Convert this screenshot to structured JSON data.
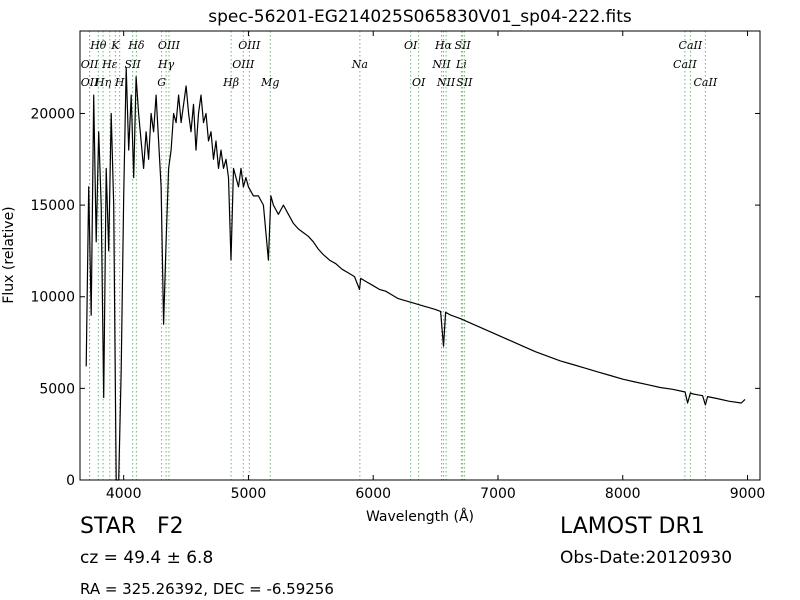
{
  "chart_data": {
    "type": "line",
    "title": "spec-56201-EG214025S065830V01_sp04-222.fits",
    "xlabel": "Wavelength (Å)",
    "ylabel": "Flux (relative)",
    "xlim": [
      3650,
      9100
    ],
    "ylim": [
      0,
      24500
    ],
    "xticks": [
      4000,
      5000,
      6000,
      7000,
      8000,
      9000
    ],
    "yticks": [
      0,
      5000,
      10000,
      15000,
      20000
    ],
    "grid": false,
    "line_color": "#000000",
    "marker_color": "#5fbf6f",
    "series": [
      {
        "x": [
          3700,
          3720,
          3740,
          3760,
          3780,
          3800,
          3820,
          3840,
          3860,
          3880,
          3900,
          3920,
          3940,
          3960,
          3980,
          4000,
          4020,
          4040,
          4060,
          4080,
          4100,
          4120,
          4140,
          4160,
          4180,
          4200,
          4220,
          4240,
          4260,
          4280,
          4300,
          4320,
          4340,
          4360,
          4380,
          4400,
          4420,
          4440,
          4460,
          4480,
          4500,
          4520,
          4540,
          4560,
          4580,
          4600,
          4620,
          4640,
          4660,
          4680,
          4700,
          4720,
          4740,
          4760,
          4780,
          4800,
          4820,
          4840,
          4860,
          4880,
          4900,
          4920,
          4940,
          4960,
          4980,
          5000,
          5040,
          5080,
          5120,
          5160,
          5180,
          5200,
          5240,
          5280,
          5320,
          5360,
          5400,
          5440,
          5480,
          5520,
          5560,
          5600,
          5650,
          5700,
          5750,
          5800,
          5850,
          5890,
          5900,
          5950,
          6000,
          6050,
          6100,
          6150,
          6200,
          6250,
          6300,
          6350,
          6400,
          6450,
          6500,
          6540,
          6563,
          6580,
          6620,
          6700,
          6800,
          6900,
          7000,
          7100,
          7200,
          7300,
          7400,
          7500,
          7600,
          7700,
          7800,
          7900,
          8000,
          8100,
          8200,
          8300,
          8400,
          8500,
          8520,
          8542,
          8560,
          8600,
          8640,
          8662,
          8680,
          8750,
          8850,
          8950,
          8980
        ],
        "y": [
          6200,
          16000,
          9000,
          21000,
          13000,
          19000,
          15000,
          4500,
          17000,
          12500,
          20000,
          15000,
          0,
          0,
          6000,
          15500,
          22500,
          18000,
          21000,
          16500,
          22000,
          20000,
          18500,
          17000,
          19000,
          17500,
          20000,
          19000,
          21000,
          18500,
          16000,
          8500,
          13000,
          17000,
          18000,
          20000,
          19500,
          21000,
          19500,
          20500,
          21500,
          20000,
          19000,
          20500,
          18000,
          20000,
          21000,
          19500,
          20000,
          18500,
          19000,
          17500,
          18500,
          17000,
          18000,
          17000,
          17500,
          16500,
          12000,
          17000,
          16500,
          16000,
          17000,
          16000,
          16500,
          16000,
          15500,
          15500,
          15000,
          12000,
          15500,
          15000,
          14500,
          15000,
          14500,
          14000,
          13700,
          13500,
          13300,
          13000,
          12600,
          12300,
          12000,
          11800,
          11500,
          11300,
          11100,
          10400,
          11000,
          10800,
          10600,
          10400,
          10300,
          10100,
          9900,
          9800,
          9700,
          9600,
          9500,
          9400,
          9300,
          9200,
          7300,
          9150,
          9000,
          8800,
          8500,
          8200,
          7900,
          7600,
          7300,
          7000,
          6750,
          6500,
          6300,
          6100,
          5900,
          5700,
          5500,
          5350,
          5200,
          5050,
          4950,
          4800,
          4200,
          4750,
          4700,
          4650,
          4600,
          4100,
          4550,
          4450,
          4300,
          4200,
          4400
        ]
      }
    ],
    "lines": [
      {
        "wl": 3727,
        "label": "OII",
        "row": 1
      },
      {
        "wl": 3727,
        "label": "OII",
        "row": 2
      },
      {
        "wl": 3797,
        "label": "Hθ",
        "row": 0
      },
      {
        "wl": 3835,
        "label": "Hη",
        "row": 2
      },
      {
        "wl": 3889,
        "label": "Hε",
        "row": 1
      },
      {
        "wl": 3933,
        "label": "K",
        "row": 0
      },
      {
        "wl": 3968,
        "label": "H",
        "row": 2
      },
      {
        "wl": 4072,
        "label": "SII",
        "row": 1
      },
      {
        "wl": 4102,
        "label": "Hδ",
        "row": 0
      },
      {
        "wl": 4304,
        "label": "G",
        "row": 2
      },
      {
        "wl": 4340,
        "label": "Hγ",
        "row": 1
      },
      {
        "wl": 4363,
        "label": "OIII",
        "row": 0
      },
      {
        "wl": 4861,
        "label": "Hβ",
        "row": 2
      },
      {
        "wl": 4959,
        "label": "OIII",
        "row": 1
      },
      {
        "wl": 5007,
        "label": "OIII",
        "row": 0
      },
      {
        "wl": 5175,
        "label": "Mg",
        "row": 2
      },
      {
        "wl": 5893,
        "label": "Na",
        "row": 1
      },
      {
        "wl": 6300,
        "label": "OI",
        "row": 0
      },
      {
        "wl": 6364,
        "label": "OI",
        "row": 2
      },
      {
        "wl": 6548,
        "label": "NII",
        "row": 1
      },
      {
        "wl": 6563,
        "label": "Hα",
        "row": 0
      },
      {
        "wl": 6584,
        "label": "NII",
        "row": 2
      },
      {
        "wl": 6707,
        "label": "Li",
        "row": 1
      },
      {
        "wl": 6717,
        "label": "SII",
        "row": 0
      },
      {
        "wl": 6731,
        "label": "SII",
        "row": 2
      },
      {
        "wl": 8498,
        "label": "CaII",
        "row": 1
      },
      {
        "wl": 8542,
        "label": "CaII",
        "row": 0
      },
      {
        "wl": 8662,
        "label": "CaII",
        "row": 2
      }
    ]
  },
  "info": {
    "class": "STAR",
    "subclass": "F2",
    "cz": "cz = 49.4  ± 6.8",
    "coords": "RA = 325.26392, DEC = -6.59256",
    "survey": "LAMOST DR1",
    "obs_date": "Obs-Date:20120930"
  }
}
